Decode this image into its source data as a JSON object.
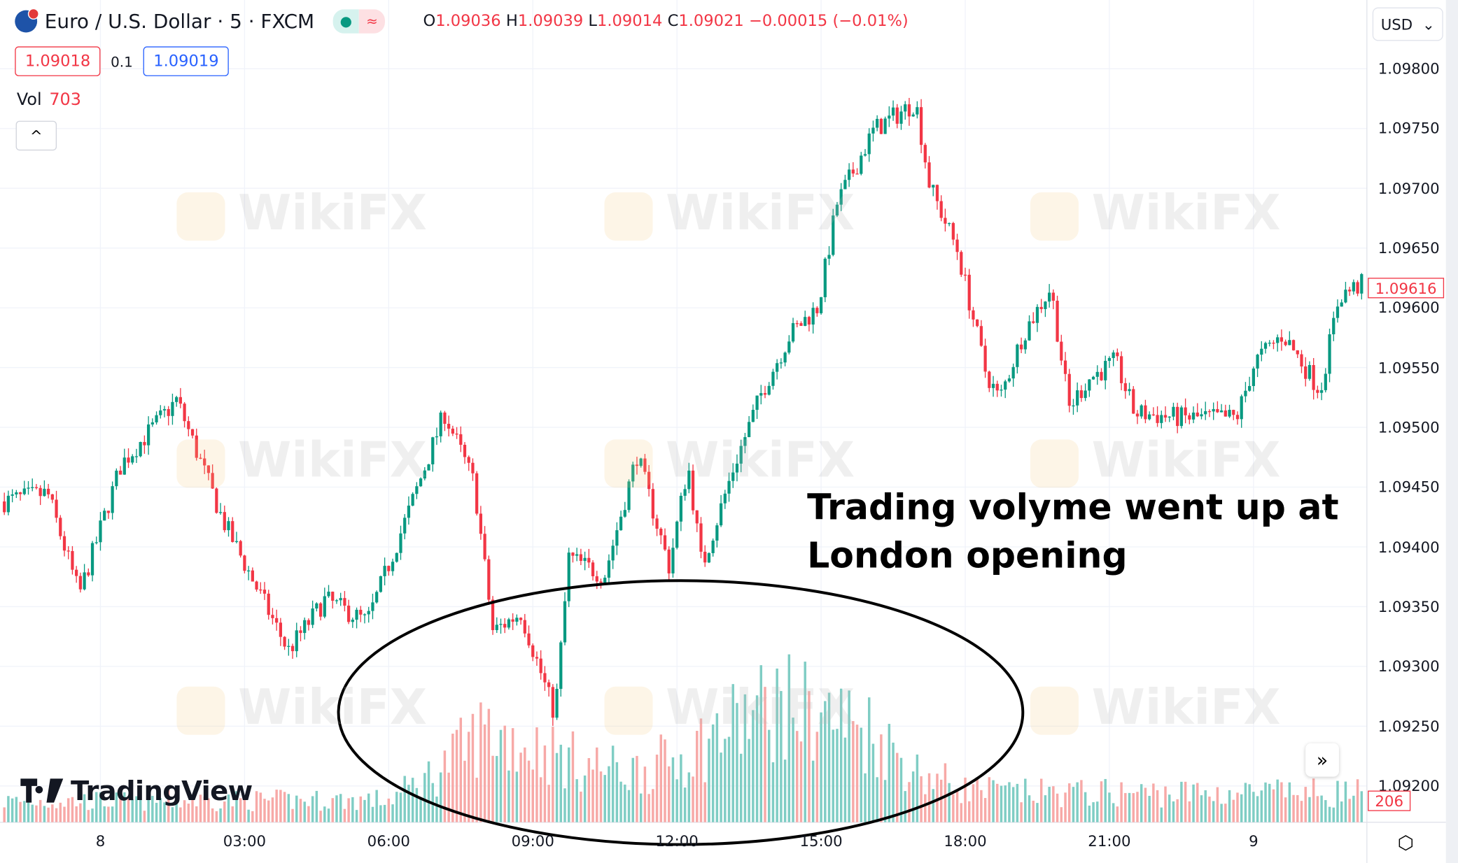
{
  "header": {
    "symbol_title": "Euro / U.S. Dollar · 5 · FXCM",
    "ohlc": {
      "o_label": "O",
      "o": "1.09036",
      "h_label": "H",
      "h": "1.09039",
      "l_label": "L",
      "l": "1.09014",
      "c_label": "C",
      "c": "1.09021",
      "change": "−0.00015 (−0.01%)"
    },
    "sell_price": "1.09018",
    "spread": "0.1",
    "buy_price": "1.09019",
    "vol_label": "Vol",
    "vol_value": "703",
    "collapse_icon": "^"
  },
  "currency_select": "USD",
  "price_axis": [
    "1.09800",
    "1.09750",
    "1.09700",
    "1.09650",
    "1.09600",
    "1.09550",
    "1.09500",
    "1.09450",
    "1.09400",
    "1.09350",
    "1.09300",
    "1.09250",
    "1.09200"
  ],
  "current_price": "1.09616",
  "current_volume": "206",
  "time_axis": [
    {
      "label": "8",
      "h": 0
    },
    {
      "label": "03:00",
      "h": 3
    },
    {
      "label": "06:00",
      "h": 6
    },
    {
      "label": "09:00",
      "h": 9
    },
    {
      "label": "12:00",
      "h": 12
    },
    {
      "label": "15:00",
      "h": 15
    },
    {
      "label": "18:00",
      "h": 18
    },
    {
      "label": "21:00",
      "h": 21
    },
    {
      "label": "9",
      "h": 24
    }
  ],
  "annotation": {
    "line1": "Trading volyme went up at",
    "line2": "London opening"
  },
  "logo_text": "TradingView",
  "watermark": "WikiFX",
  "colors": {
    "up": "#089981",
    "down": "#f23645",
    "vol_up": "#7fcdc4",
    "vol_down": "#f7a9a7"
  },
  "chart_data": {
    "type": "candlestick",
    "interval_minutes": 5,
    "x_unit": "hours from 00:00 on day 8",
    "ylim": [
      1.0918,
      1.0982
    ],
    "price_path": [
      [
        -2.0,
        1.09438
      ],
      [
        -1.1,
        1.09445
      ],
      [
        -0.44,
        1.0936
      ],
      [
        0.43,
        1.09469
      ],
      [
        1.59,
        1.09523
      ],
      [
        2.55,
        1.09422
      ],
      [
        3.91,
        1.09313
      ],
      [
        4.68,
        1.09356
      ],
      [
        5.55,
        1.09337
      ],
      [
        6.42,
        1.0943
      ],
      [
        7.16,
        1.09512
      ],
      [
        7.78,
        1.09453
      ],
      [
        8.17,
        1.09329
      ],
      [
        8.75,
        1.09345
      ],
      [
        9.46,
        1.09259
      ],
      [
        9.75,
        1.09391
      ],
      [
        10.49,
        1.09376
      ],
      [
        11.17,
        1.09477
      ],
      [
        11.84,
        1.09383
      ],
      [
        12.23,
        1.09469
      ],
      [
        12.52,
        1.09383
      ],
      [
        13.2,
        1.09469
      ],
      [
        13.78,
        1.09531
      ],
      [
        14.36,
        1.09578
      ],
      [
        14.94,
        1.09601
      ],
      [
        15.33,
        1.09687
      ],
      [
        16.1,
        1.09749
      ],
      [
        16.97,
        1.09772
      ],
      [
        17.26,
        1.09702
      ],
      [
        17.84,
        1.09648
      ],
      [
        18.42,
        1.09547
      ],
      [
        18.71,
        1.09523
      ],
      [
        19.2,
        1.09578
      ],
      [
        19.78,
        1.09617
      ],
      [
        20.16,
        1.09516
      ],
      [
        20.55,
        1.0954
      ],
      [
        21.13,
        1.09555
      ],
      [
        21.52,
        1.09512
      ],
      [
        22.49,
        1.09508
      ],
      [
        23.65,
        1.09508
      ],
      [
        24.03,
        1.09555
      ],
      [
        24.61,
        1.09578
      ],
      [
        25.39,
        1.09531
      ],
      [
        25.78,
        1.0961
      ],
      [
        26.32,
        1.09621
      ]
    ],
    "volume_profile": [
      [
        -2,
        150
      ],
      [
        6,
        160
      ],
      [
        7,
        360
      ],
      [
        8,
        660
      ],
      [
        9,
        540
      ],
      [
        10,
        420
      ],
      [
        11,
        360
      ],
      [
        12,
        450
      ],
      [
        13,
        660
      ],
      [
        14,
        840
      ],
      [
        15,
        780
      ],
      [
        16,
        660
      ],
      [
        17,
        360
      ],
      [
        18,
        240
      ],
      [
        19,
        210
      ],
      [
        26.3,
        210
      ]
    ]
  }
}
